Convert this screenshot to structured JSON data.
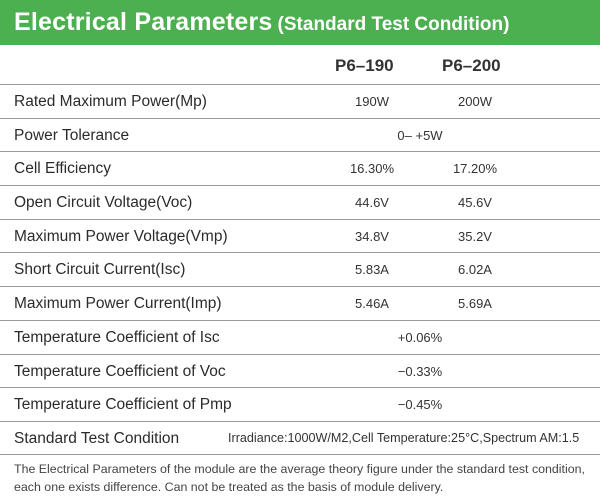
{
  "header": {
    "title": "Electrical Parameters",
    "subtitle": "(Standard Test Condition)"
  },
  "columns": [
    "P6–190",
    "P6–200"
  ],
  "rows": [
    {
      "label": "Rated Maximum Power(Mp)",
      "v1": "190W",
      "v2": "200W"
    },
    {
      "label": "Power Tolerance",
      "span": "0– +5W"
    },
    {
      "label": "Cell Efficiency",
      "v1": "16.30%",
      "v2": "17.20%"
    },
    {
      "label": "Open Circuit Voltage(Voc)",
      "v1": "44.6V",
      "v2": "45.6V"
    },
    {
      "label": "Maximum Power Voltage(Vmp)",
      "v1": "34.8V",
      "v2": "35.2V"
    },
    {
      "label": "Short Circuit Current(Isc)",
      "v1": "5.83A",
      "v2": "6.02A"
    },
    {
      "label": "Maximum Power Current(Imp)",
      "v1": "5.46A",
      "v2": "5.69A"
    },
    {
      "label": "Temperature Coefficient of Isc",
      "span": "+0.06%"
    },
    {
      "label": "Temperature Coefficient of Voc",
      "span": "−0.33%"
    },
    {
      "label": "Temperature Coefficient of Pmp",
      "span": "−0.45%"
    },
    {
      "label": "Standard Test Condition",
      "stc": "Irradiance:1000W/M2,Cell Temperature:25°C,Spectrum AM:1.5"
    }
  ],
  "note": "The Electrical Parameters of the module are the average theory figure under the standard test condition, each one exists difference. Can not be treated as the basis of module delivery."
}
